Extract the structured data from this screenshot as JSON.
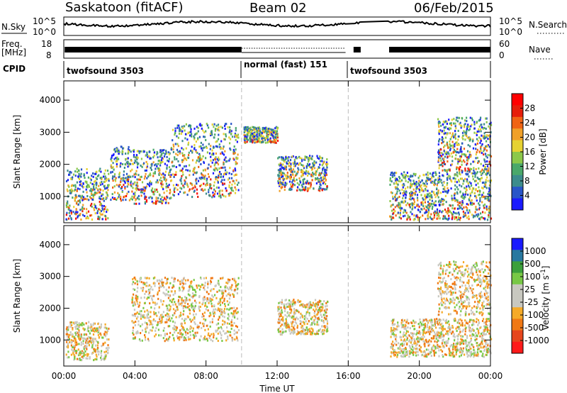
{
  "header": {
    "radar": "Saskatoon (fitACF)",
    "beam": "Beam 02",
    "date": "06/Feb/2015"
  },
  "top_panels": {
    "nsky_label": "N.Sky",
    "nsky_ticks": [
      "10^5",
      "10^0"
    ],
    "nsearch_label": "N.Search",
    "nsearch_ticks": [
      "10^5",
      "10^0"
    ],
    "freq_label_1": "Freq.",
    "freq_label_2": "[MHz]",
    "freq_ticks": [
      "18",
      "8"
    ],
    "nave_label": "Nave",
    "nave_ticks": [
      "60",
      "0"
    ],
    "cpid_label": "CPID",
    "cpid_segments": [
      {
        "label": "twofsound 3503",
        "start": 0,
        "end": 10
      },
      {
        "label": "normal (fast) 151",
        "start": 10,
        "end": 16
      },
      {
        "label": "twofsound 3503",
        "start": 16,
        "end": 24
      }
    ]
  },
  "colors": {
    "power": [
      "#1a1aff",
      "#2855c8",
      "#3c8c8c",
      "#4aa86a",
      "#8cc84a",
      "#e6d232",
      "#f0a028",
      "#f06414",
      "#e61e0a",
      "#ff0000"
    ],
    "velocity": [
      "#ff1a1a",
      "#e6461e",
      "#f07814",
      "#f5aa28",
      "#c8c8c0",
      "#c8c8c0",
      "#78c846",
      "#3ca03c",
      "#2878a0",
      "#1a1aff"
    ]
  },
  "chart_data": [
    {
      "type": "heatmap",
      "xlabel": "",
      "ylabel": "Slant Range [km]",
      "xlim": [
        0,
        24
      ],
      "ylim": [
        180,
        4600
      ],
      "yticks": [
        1000,
        2000,
        3000,
        4000
      ],
      "colorbar": {
        "label": "Power [dB]",
        "range": [
          0,
          32
        ],
        "ticks": [
          "4",
          "8",
          "12",
          "16",
          "20",
          "24",
          "28"
        ]
      },
      "data_gaps_hours": [
        [
          15.85,
          16.2
        ],
        [
          16.75,
          18.2
        ]
      ],
      "mode_changes_hours": [
        10,
        16
      ],
      "echo_regions": [
        {
          "t": [
            0.1,
            2.5
          ],
          "range_km": [
            300,
            1900
          ],
          "power_db": [
            6,
            28
          ]
        },
        {
          "t": [
            2.6,
            3.8
          ],
          "range_km": [
            900,
            2600
          ],
          "power_db": [
            6,
            14
          ]
        },
        {
          "t": [
            3.8,
            6.0
          ],
          "range_km": [
            800,
            2500
          ],
          "power_db": [
            6,
            16
          ]
        },
        {
          "t": [
            6.0,
            9.8
          ],
          "range_km": [
            1000,
            3300
          ],
          "power_db": [
            6,
            24
          ]
        },
        {
          "t": [
            10.1,
            12.0
          ],
          "range_km": [
            2700,
            3200
          ],
          "power_db": [
            8,
            20
          ]
        },
        {
          "t": [
            12.0,
            14.8
          ],
          "range_km": [
            1200,
            2300
          ],
          "power_db": [
            10,
            28
          ]
        },
        {
          "t": [
            18.3,
            24.0
          ],
          "range_km": [
            300,
            1800
          ],
          "power_db": [
            8,
            30
          ]
        },
        {
          "t": [
            21.0,
            24.0
          ],
          "range_km": [
            1800,
            3500
          ],
          "power_db": [
            6,
            20
          ]
        }
      ]
    },
    {
      "type": "heatmap",
      "xlabel": "Time UT",
      "ylabel": "Slant Range [km]",
      "xlim": [
        0,
        24
      ],
      "ylim": [
        180,
        4600
      ],
      "yticks": [
        1000,
        2000,
        3000,
        4000
      ],
      "xticks": [
        "00:00",
        "04:00",
        "08:00",
        "12:00",
        "16:00",
        "20:00",
        "00:00"
      ],
      "colorbar": {
        "label": "Velocity [m s",
        "label_sup": "-1",
        "label_end": "]",
        "ticks": [
          "1000",
          "500",
          "100",
          "25",
          "-25",
          "-100",
          "-500",
          "-1000"
        ]
      },
      "echo_regions": [
        {
          "t": [
            0.1,
            2.5
          ],
          "range_km": [
            400,
            1600
          ],
          "velocity": [
            -25,
            25
          ]
        },
        {
          "t": [
            3.8,
            9.8
          ],
          "range_km": [
            1000,
            3000
          ],
          "velocity": [
            -500,
            -100
          ]
        },
        {
          "t": [
            12.0,
            14.8
          ],
          "range_km": [
            1200,
            2300
          ],
          "velocity": [
            -500,
            -100
          ]
        },
        {
          "t": [
            18.3,
            24.0
          ],
          "range_km": [
            500,
            1700
          ],
          "velocity": [
            -25,
            25
          ]
        },
        {
          "t": [
            21.0,
            24.0
          ],
          "range_km": [
            1800,
            3500
          ],
          "velocity": [
            -500,
            -25
          ]
        }
      ]
    }
  ]
}
